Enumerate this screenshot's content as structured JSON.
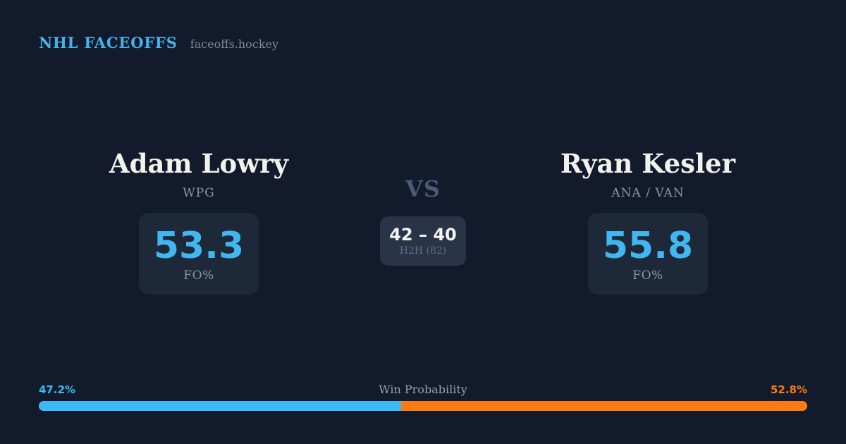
{
  "header": {
    "brand": "NHL FACEOFFS",
    "site": "faceoffs.hockey"
  },
  "matchup": {
    "left": {
      "name": "Adam Lowry",
      "team": "WPG",
      "fo_pct": "53.3",
      "stat_label": "FO%"
    },
    "right": {
      "name": "Ryan Kesler",
      "team": "ANA / VAN",
      "fo_pct": "55.8",
      "stat_label": "FO%"
    },
    "vs_label": "VS",
    "h2h": {
      "score": "42 – 40",
      "label": "H2H (82)"
    }
  },
  "win_probability": {
    "label": "Win Probability",
    "left_pct_label": "47.2%",
    "right_pct_label": "52.8%",
    "left_value": 47.2,
    "right_value": 52.8
  },
  "colors": {
    "background": "#121a2b",
    "accent_blue": "#3cbaf6",
    "accent_orange": "#f87b16",
    "card": "#1d2938",
    "card_h2h": "#2a3447",
    "brand_blue": "#45b3ee"
  }
}
